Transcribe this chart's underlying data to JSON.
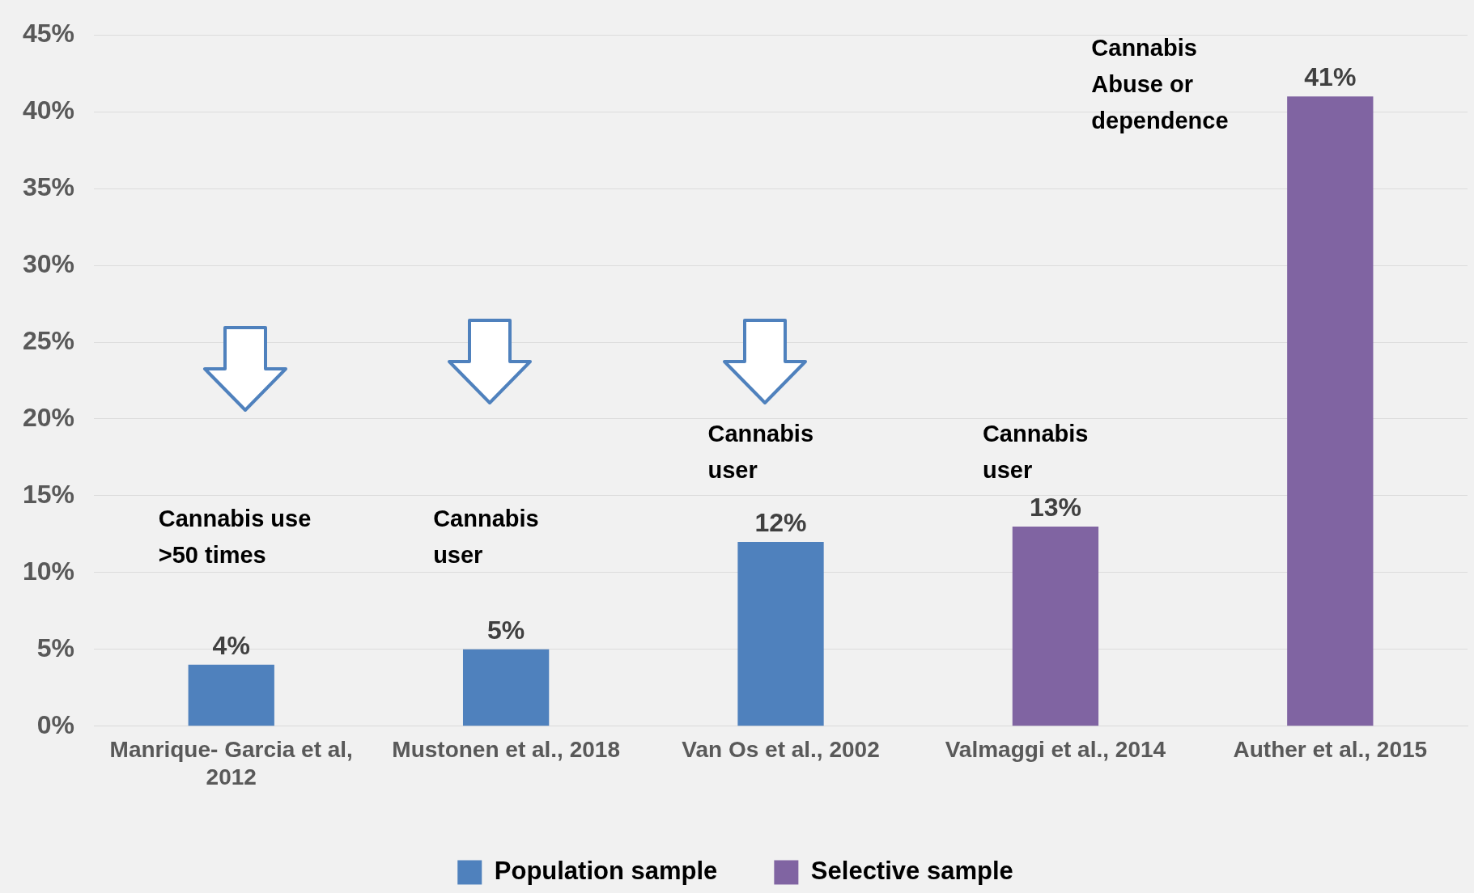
{
  "chart_data": {
    "type": "bar",
    "categories": [
      "Manrique- Garcia et al, 2012",
      "Mustonen et al., 2018",
      "Van Os et al., 2002",
      "Valmaggi et al., 2014",
      "Auther et al., 2015"
    ],
    "series": [
      {
        "name": "Population sample",
        "color": "#4f81bd",
        "values": [
          4,
          5,
          12,
          null,
          null
        ],
        "value_labels": [
          "4%",
          "5%",
          "12%",
          null,
          null
        ]
      },
      {
        "name": "Selective sample",
        "color": "#8064a2",
        "values": [
          null,
          null,
          null,
          13,
          41
        ],
        "value_labels": [
          null,
          null,
          null,
          "13%",
          "41%"
        ]
      }
    ],
    "ylim": [
      0,
      45
    ],
    "yticks": [
      {
        "value": 0,
        "label": "0%"
      },
      {
        "value": 5,
        "label": "5%"
      },
      {
        "value": 10,
        "label": "10%"
      },
      {
        "value": 15,
        "label": "15%"
      },
      {
        "value": 20,
        "label": "20%"
      },
      {
        "value": 25,
        "label": "25%"
      },
      {
        "value": 30,
        "label": "30%"
      },
      {
        "value": 35,
        "label": "35%"
      },
      {
        "value": 40,
        "label": "40%"
      },
      {
        "value": 45,
        "label": "45%"
      }
    ],
    "annotations": [
      "Cannabis use >50 times",
      "Cannabis user",
      "Cannabis user",
      "Cannabis user",
      "Cannabis Abuse or dependence"
    ],
    "grid": "y",
    "legend": "bottom"
  }
}
